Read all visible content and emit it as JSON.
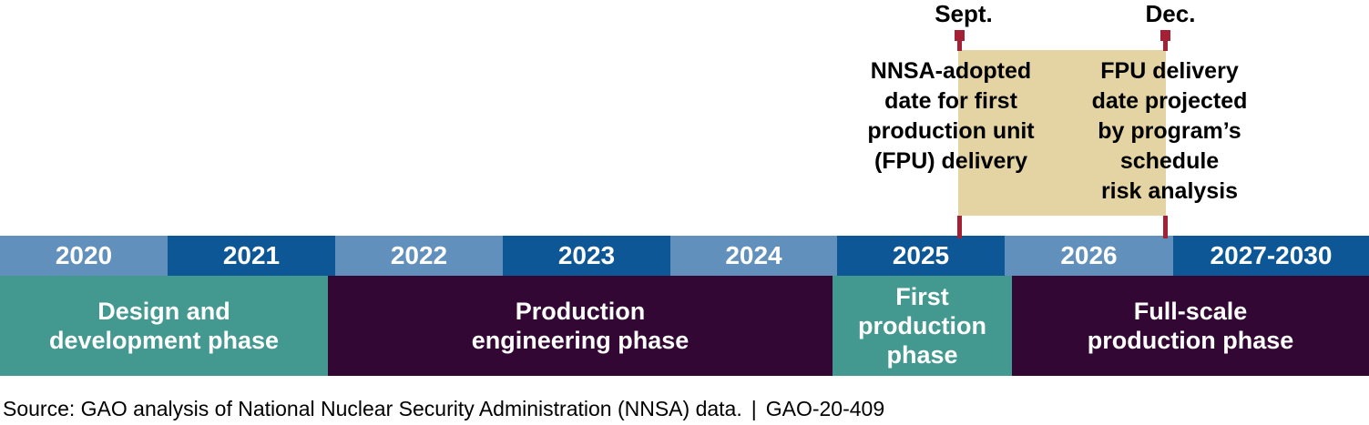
{
  "colors": {
    "light_blue": "#6290bc",
    "dark_blue": "#0d5797",
    "teal": "#43998f",
    "plum": "#330734",
    "tan_highlight": "#e4d3a3",
    "marker_red": "#a32035",
    "label_white": "#ffffff",
    "text_black": "#000000"
  },
  "annotations": {
    "sept_label": "Sept.",
    "dec_label": "Dec.",
    "left_note": "NNSA-adopted\ndate for first\nproduction unit\n(FPU) delivery",
    "right_note": "FPU delivery\ndate projected\nby program’s\nschedule\nrisk analysis"
  },
  "timeline": {
    "years": [
      {
        "label": "2020",
        "shade": "light"
      },
      {
        "label": "2021",
        "shade": "dark"
      },
      {
        "label": "2022",
        "shade": "light"
      },
      {
        "label": "2023",
        "shade": "dark"
      },
      {
        "label": "2024",
        "shade": "light"
      },
      {
        "label": "2025",
        "shade": "dark"
      },
      {
        "label": "2026",
        "shade": "light"
      },
      {
        "label": "2027-2030",
        "shade": "dark"
      }
    ],
    "phases": [
      {
        "label": "Design and\ndevelopment phase",
        "color": "teal"
      },
      {
        "label": "Production\nengineering phase",
        "color": "plum"
      },
      {
        "label": "First\nproduction\nphase",
        "color": "teal"
      },
      {
        "label": "Full-scale\nproduction phase",
        "color": "plum"
      }
    ]
  },
  "chart_data": {
    "type": "bar",
    "subtype": "gantt-timeline",
    "title": "",
    "x_categories": [
      "2020",
      "2021",
      "2022",
      "2023",
      "2024",
      "2025",
      "2026",
      "2027-2030"
    ],
    "x_range_years": [
      2020,
      2030
    ],
    "series": [
      {
        "name": "Design and development phase",
        "start_year": 2020.0,
        "end_year": 2022.0,
        "color": "#43998f"
      },
      {
        "name": "Production engineering phase",
        "start_year": 2022.0,
        "end_year": 2025.0,
        "color": "#330734"
      },
      {
        "name": "First production phase",
        "start_year": 2025.0,
        "end_year": 2026.05,
        "color": "#43998f"
      },
      {
        "name": "Full-scale production phase",
        "start_year": 2026.05,
        "end_year": 2031.0,
        "color": "#330734"
      }
    ],
    "markers": [
      {
        "date": "Sept. 2025",
        "label": "NNSA-adopted date for first production unit (FPU) delivery"
      },
      {
        "date": "Dec. 2026",
        "label": "FPU delivery date projected by program’s schedule risk analysis"
      }
    ],
    "legend": false,
    "grid": false
  },
  "footer": {
    "source": "Source: GAO analysis of National Nuclear Security Administration (NNSA) data.",
    "separator": "|",
    "report_number": "GAO-20-409"
  }
}
